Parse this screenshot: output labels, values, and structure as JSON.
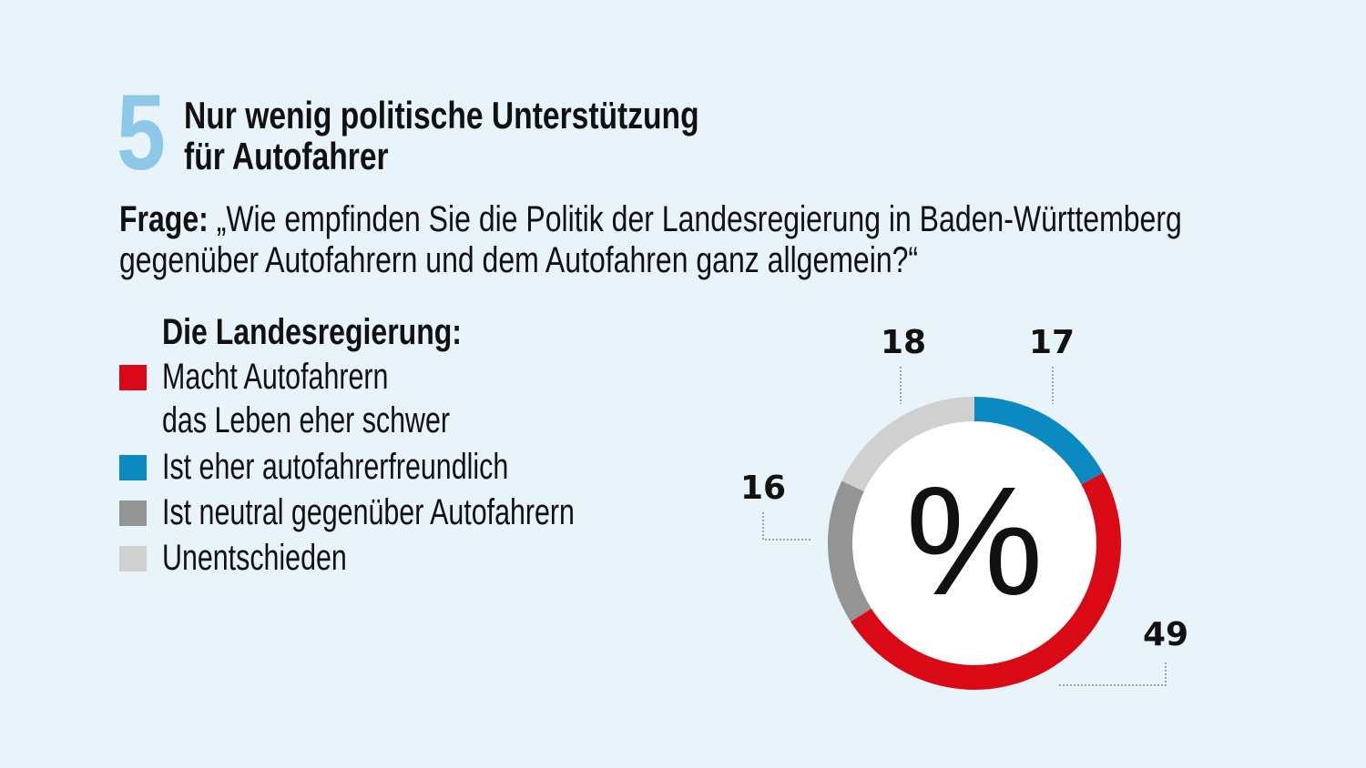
{
  "header": {
    "number": "5",
    "title_line1": "Nur wenig politische Unterstützung",
    "title_line2": "für Autofahrer"
  },
  "question": {
    "label": "Frage:",
    "line1": " „Wie empfinden Sie die Politik der Landesregierung in Baden-Württemberg",
    "line2": "gegenüber Autofahrern und dem Autofahren ganz allgemein?“"
  },
  "legend": {
    "heading": "Die Landesregierung:",
    "items": [
      {
        "label_line1": "Macht Autofahrern",
        "label_line2": "das Leben eher schwer",
        "color": "#d90a16"
      },
      {
        "label_line1": "Ist eher autofahrerfreundlich",
        "color": "#0a8ac0"
      },
      {
        "label_line1": "Ist neutral gegenüber Autofahrern",
        "color": "#949494"
      },
      {
        "label_line1": "Unentschieden",
        "color": "#d0d0d0"
      }
    ]
  },
  "chart_data": {
    "type": "pie",
    "variant": "donut",
    "center_label": "%",
    "order": "clockwise from top",
    "slices": [
      {
        "name": "Ist eher autofahrerfreundlich",
        "value": 17,
        "color": "#0a8ac0"
      },
      {
        "name": "Macht Autofahrern das Leben eher schwer",
        "value": 49,
        "color": "#d90a16"
      },
      {
        "name": "Ist neutral gegenüber Autofahrern",
        "value": 16,
        "color": "#949494"
      },
      {
        "name": "Unentschieden",
        "value": 18,
        "color": "#d0d0d0"
      }
    ]
  }
}
